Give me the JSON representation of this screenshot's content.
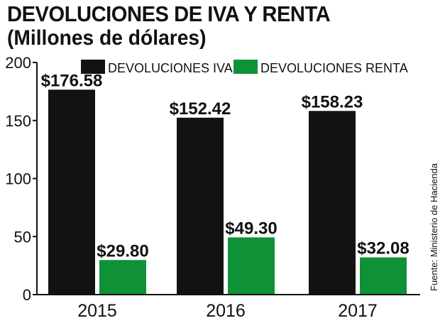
{
  "header": {
    "title": "DEVOLUCIONES DE IVA Y RENTA",
    "subtitle": "(Millones de dólares)"
  },
  "source": "Fuente: Ministerio de Hacienda",
  "colors": {
    "iva": "#121212",
    "renta": "#0e9137",
    "axis": "#111111",
    "text": "#111111"
  },
  "chart_data": {
    "type": "bar",
    "title": "DEVOLUCIONES DE IVA Y RENTA",
    "subtitle": "(Millones de dólares)",
    "categories": [
      "2015",
      "2016",
      "2017"
    ],
    "series": [
      {
        "name": "DEVOLUCIONES IVA",
        "values": [
          176.58,
          152.42,
          158.23
        ],
        "labels": [
          "$176.58",
          "$152.42",
          "$158.23"
        ]
      },
      {
        "name": "DEVOLUCIONES RENTA",
        "values": [
          29.8,
          49.3,
          32.08
        ],
        "labels": [
          "$29.80",
          "$49.30",
          "$32.08"
        ]
      }
    ],
    "yticks": [
      "0",
      "50",
      "100",
      "150",
      "200"
    ],
    "ylim": [
      0,
      200
    ],
    "xlabel": "",
    "ylabel": "",
    "grid": false,
    "legend": "top"
  }
}
